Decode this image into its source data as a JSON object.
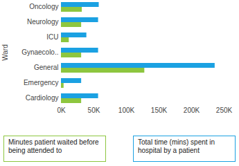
{
  "chart_data": {
    "type": "bar",
    "orientation": "horizontal",
    "y_label": "Ward",
    "categories": [
      "Oncology",
      "Neurology",
      "ICU",
      "Gynaecolo..",
      "General",
      "Emergency",
      "Cardiology"
    ],
    "series": [
      {
        "name": "Minutes patient waited before being attended to",
        "color": "#8dc63f",
        "values": [
          32000,
          31000,
          12000,
          31000,
          128000,
          4000,
          31000
        ]
      },
      {
        "name": "Total time (mins) spent in hospital by a patient",
        "color": "#1ba1e2",
        "values": [
          58000,
          57000,
          39000,
          57000,
          236000,
          31000,
          57000
        ]
      }
    ],
    "xlim": [
      0,
      250000
    ],
    "xticks": [
      {
        "value": 0,
        "label": "0K"
      },
      {
        "value": 50000,
        "label": "50K"
      },
      {
        "value": 100000,
        "label": "100K"
      },
      {
        "value": 150000,
        "label": "150K"
      },
      {
        "value": 200000,
        "label": "200K"
      },
      {
        "value": 250000,
        "label": "250K"
      }
    ],
    "grid": false,
    "legend": "bottom"
  }
}
